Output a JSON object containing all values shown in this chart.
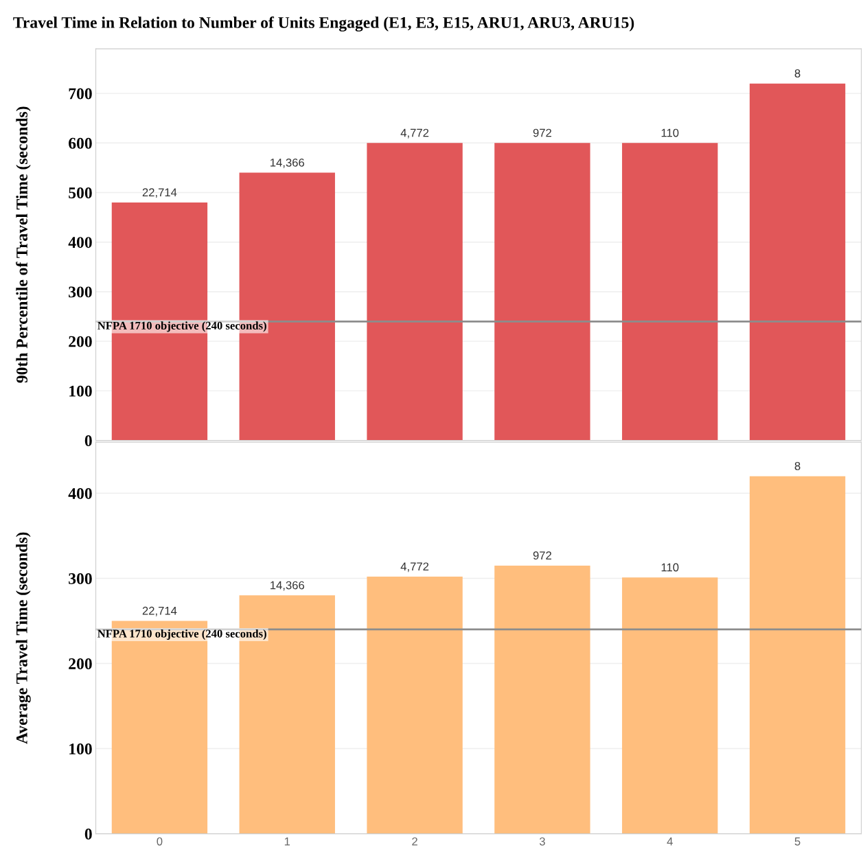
{
  "chart_data": [
    {
      "type": "bar",
      "title": "Travel Time in Relation to Number of Units Engaged (E1, E3, E15, ARU1, ARU3, ARU15)",
      "ylabel": "90th Percentile of Travel Time (seconds)",
      "categories": [
        "0",
        "1",
        "2",
        "3",
        "4",
        "5"
      ],
      "values": [
        480,
        540,
        600,
        600,
        600,
        720
      ],
      "color": "#e15759",
      "annotations": [
        {
          "text": "22,714",
          "x": "0",
          "y": 480
        },
        {
          "text": "14,366",
          "x": "1",
          "y": 540
        },
        {
          "text": "4,772",
          "x": "2",
          "y": 600
        },
        {
          "text": "972",
          "x": "3",
          "y": 600
        },
        {
          "text": "110",
          "x": "4",
          "y": 600
        },
        {
          "text": "8",
          "x": "5",
          "y": 720
        }
      ],
      "ylim": [
        0,
        790
      ],
      "yticks": [
        0,
        100,
        200,
        300,
        400,
        500,
        600,
        700
      ],
      "grid": "y",
      "tick_labels": "y",
      "ref_lines": [
        {
          "axis": "y",
          "value": 240,
          "label": "NFPA 1710 objective (240 seconds)",
          "color": "#8c8c8c"
        }
      ]
    },
    {
      "type": "bar",
      "ylabel": "Average Travel Time (seconds)",
      "categories": [
        "0",
        "1",
        "2",
        "3",
        "4",
        "5"
      ],
      "values": [
        250,
        280,
        302,
        315,
        301,
        420
      ],
      "color": "#ffbe7d",
      "annotations": [
        {
          "text": "22,714",
          "x": "0",
          "y": 250
        },
        {
          "text": "14,366",
          "x": "1",
          "y": 280
        },
        {
          "text": "4,772",
          "x": "2",
          "y": 302
        },
        {
          "text": "972",
          "x": "3",
          "y": 315
        },
        {
          "text": "110",
          "x": "4",
          "y": 301
        },
        {
          "text": "8",
          "x": "5",
          "y": 420
        }
      ],
      "ylim": [
        0,
        460
      ],
      "yticks": [
        0,
        100,
        200,
        300,
        400
      ],
      "grid": "y",
      "ref_lines": [
        {
          "axis": "y",
          "value": 240,
          "label": "NFPA 1710 objective (240 seconds)",
          "color": "#8c8c8c"
        }
      ]
    }
  ]
}
